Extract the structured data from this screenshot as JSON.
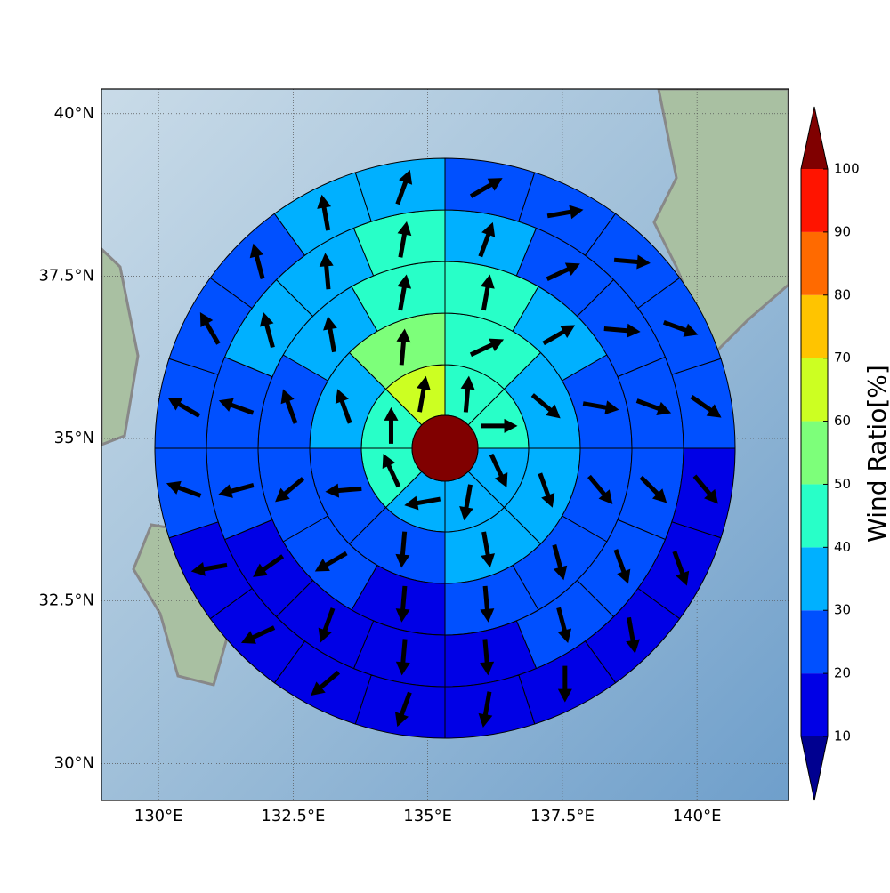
{
  "chart_data": {
    "type": "polar-wind",
    "xlim": [
      128.94,
      141.7
    ],
    "ylim": [
      29.43,
      40.38
    ],
    "grid": true,
    "xticks": [
      {
        "value": 130,
        "label": "130°E"
      },
      {
        "value": 132.5,
        "label": "132.5°E"
      },
      {
        "value": 135,
        "label": "135°E"
      },
      {
        "value": 137.5,
        "label": "137.5°E"
      },
      {
        "value": 140,
        "label": "140°E"
      }
    ],
    "yticks": [
      {
        "value": 30,
        "label": "30°N"
      },
      {
        "value": 32.5,
        "label": "32.5°N"
      },
      {
        "value": 35,
        "label": "35°N"
      },
      {
        "value": 37.5,
        "label": "37.5°N"
      },
      {
        "value": 40,
        "label": "40°N"
      }
    ],
    "center_value": 105,
    "rings": [
      {
        "values": [
          45,
          45,
          35,
          35,
          35,
          45,
          45,
          65
        ],
        "directions": [
          5,
          90,
          155,
          190,
          260,
          335,
          0,
          10
        ]
      },
      {
        "values": [
          45,
          35,
          35,
          35,
          25,
          25,
          35,
          55
        ],
        "directions": [
          65,
          130,
          160,
          170,
          185,
          265,
          340,
          5
        ]
      },
      {
        "values": [
          45,
          35,
          25,
          25,
          25,
          25,
          15,
          25,
          25,
          25,
          35,
          45
        ],
        "directions": [
          10,
          60,
          100,
          140,
          165,
          175,
          185,
          240,
          230,
          340,
          350,
          10
        ]
      },
      {
        "values": [
          35,
          25,
          25,
          25,
          25,
          25,
          25,
          15,
          15,
          15,
          15,
          25,
          25,
          35,
          35,
          45
        ],
        "directions": [
          20,
          65,
          95,
          110,
          135,
          160,
          165,
          175,
          185,
          200,
          235,
          255,
          290,
          345,
          355,
          10
        ]
      },
      {
        "values": [
          25,
          25,
          25,
          25,
          25,
          15,
          15,
          15,
          15,
          15,
          15,
          15,
          15,
          15,
          25,
          25,
          25,
          25,
          35,
          35
        ],
        "directions": [
          60,
          80,
          95,
          110,
          125,
          140,
          160,
          170,
          180,
          190,
          200,
          230,
          245,
          260,
          290,
          300,
          330,
          345,
          350,
          20
        ]
      }
    ],
    "colorbar": {
      "label": "Wind Ratio[%]",
      "ticks": [
        10,
        20,
        30,
        40,
        50,
        60,
        70,
        80,
        90,
        100
      ],
      "colors": [
        "#0000e6",
        "#0050ff",
        "#00b0ff",
        "#28ffc8",
        "#7dff7a",
        "#ccff22",
        "#ffc400",
        "#ff6a00",
        "#ff1400"
      ],
      "under_color": "#000090",
      "over_color": "#800000"
    }
  }
}
